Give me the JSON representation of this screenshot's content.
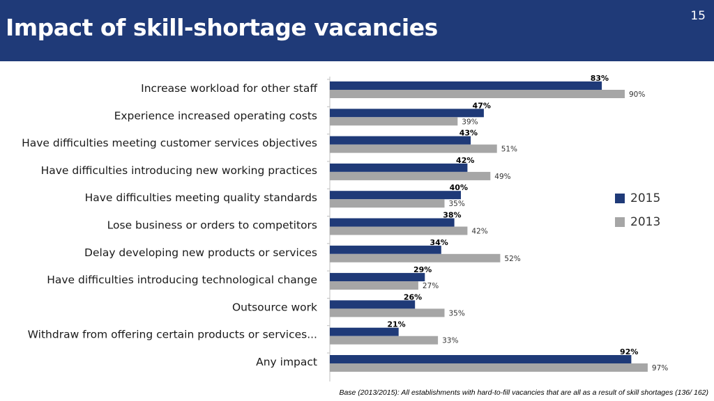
{
  "header": {
    "title": "Impact of skill-shortage vacancies",
    "page_number": "15"
  },
  "footnote": "Base (2013/2015): All establishments with hard-to-fill vacancies that are all as a result of skill shortages  (136/ 162)",
  "colors": {
    "header_bg": "#1f3a78",
    "series_2015": "#1f3a78",
    "series_2013": "#a6a6a6"
  },
  "chart_data": {
    "type": "bar",
    "orientation": "horizontal",
    "categories": [
      "Increase workload for other staff",
      "Experience increased operating costs",
      "Have difficulties meeting customer services objectives",
      "Have difficulties introducing new working practices",
      "Have difficulties meeting quality standards",
      "Lose business or orders to competitors",
      "Delay developing new products or services",
      "Have difficulties introducing technological change",
      "Outsource work",
      "Withdraw from offering certain products or services...",
      "Any impact"
    ],
    "series": [
      {
        "name": "2015",
        "values": [
          83,
          47,
          43,
          42,
          40,
          38,
          34,
          29,
          26,
          21,
          92
        ],
        "labels": [
          "83%",
          "47%",
          "43%",
          "42%",
          "40%",
          "38%",
          "34%",
          "29%",
          "26%",
          "21%",
          "92%"
        ]
      },
      {
        "name": "2013",
        "values": [
          90,
          39,
          51,
          49,
          35,
          42,
          52,
          27,
          35,
          33,
          97
        ],
        "labels": [
          "90%",
          "39%",
          "51%",
          "49%",
          "35%",
          "42%",
          "52%",
          "27%",
          "35%",
          "33%",
          "97%"
        ]
      }
    ],
    "xlim": [
      0,
      100
    ],
    "grid": false,
    "legend_position": "right"
  }
}
